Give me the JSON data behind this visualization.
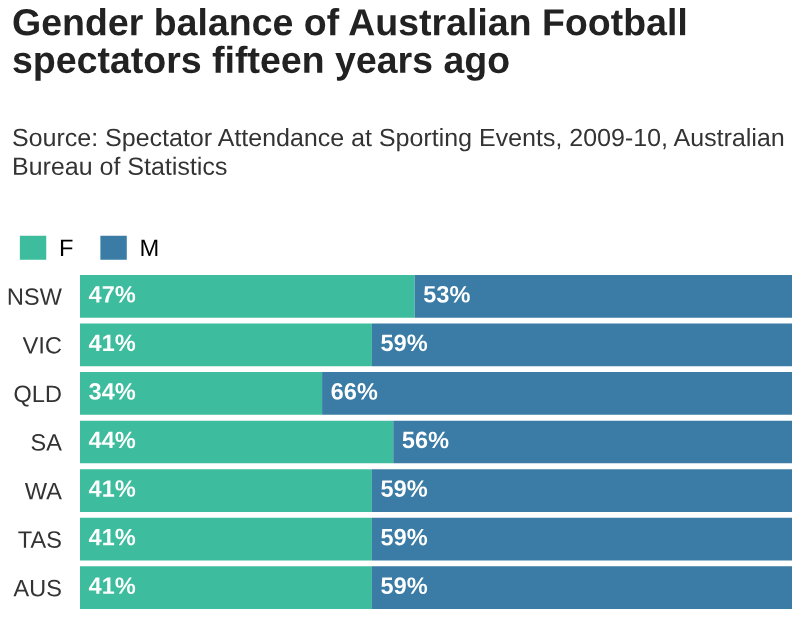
{
  "chart_data": {
    "type": "bar",
    "orientation": "horizontal",
    "stacked": true,
    "title": "Gender balance of Australian Football spectators fifteen years ago",
    "subtitle": "Source: Spectator Attendance at Sporting Events, 2009-10, Australian Bureau of Statistics",
    "categories": [
      "NSW",
      "VIC",
      "QLD",
      "SA",
      "WA",
      "TAS",
      "AUS"
    ],
    "series": [
      {
        "name": "F",
        "color": "#3dbd9d",
        "values": [
          47,
          41,
          34,
          44,
          41,
          41,
          41
        ],
        "value_labels": [
          "47%",
          "41%",
          "34%",
          "44%",
          "41%",
          "41%",
          "41%"
        ]
      },
      {
        "name": "M",
        "color": "#3a7ca5",
        "values": [
          53,
          59,
          66,
          56,
          59,
          59,
          59
        ],
        "value_labels": [
          "53%",
          "59%",
          "66%",
          "56%",
          "59%",
          "59%",
          "59%"
        ]
      }
    ],
    "xlim": [
      0,
      100
    ],
    "tick_labels": "y",
    "legend": "top left",
    "grid": false
  }
}
